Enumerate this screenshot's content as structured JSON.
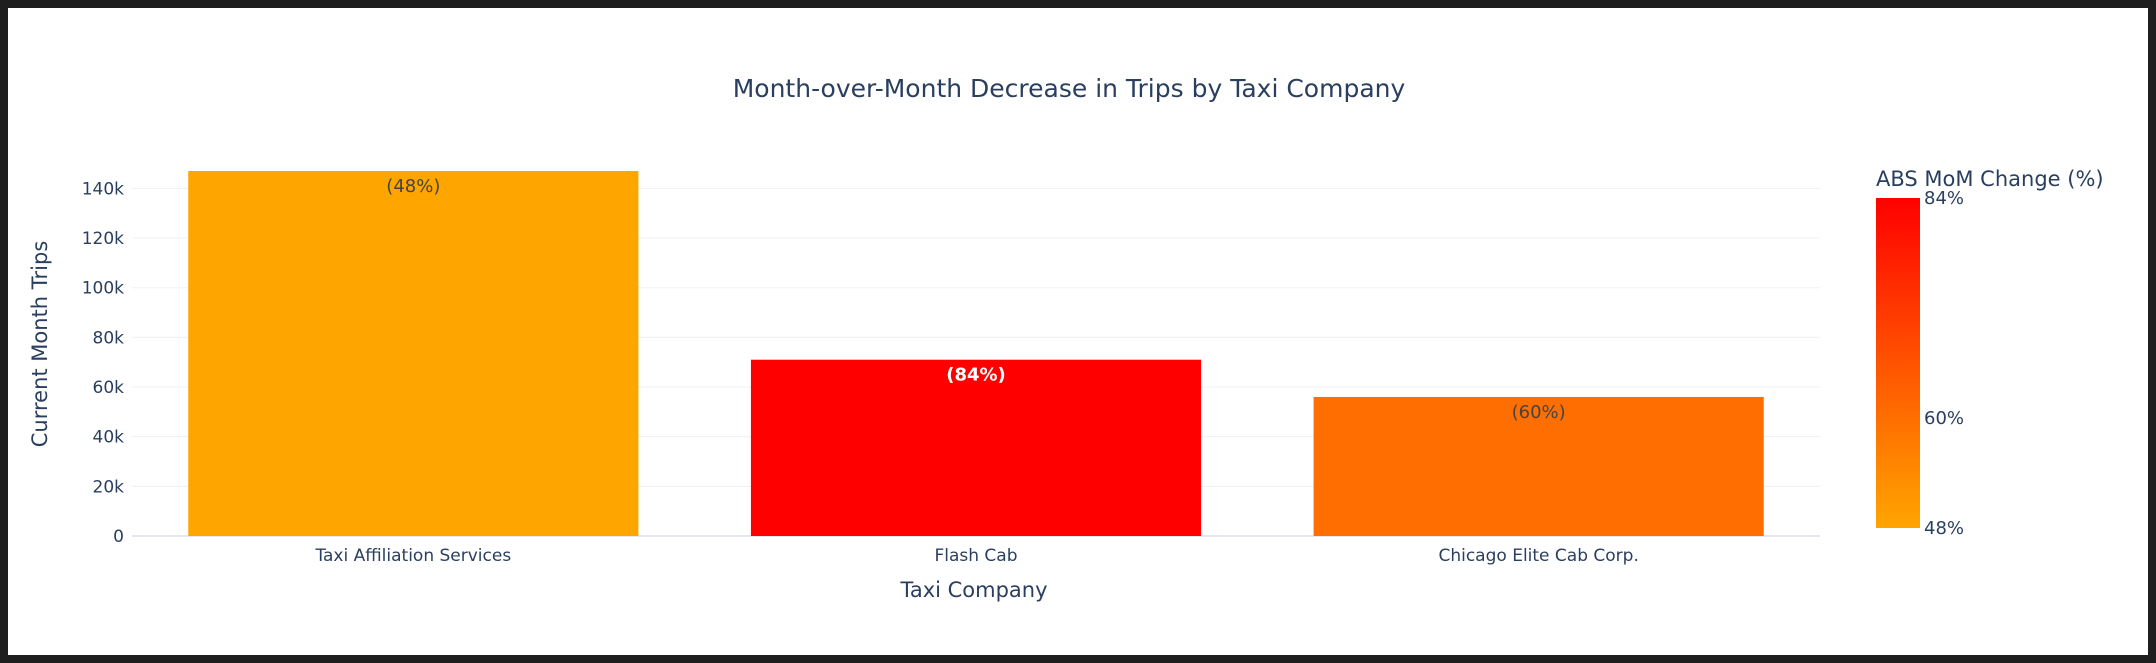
{
  "chart_data": {
    "type": "bar",
    "title": "Month-over-Month Decrease in Trips by Taxi Company",
    "xlabel": "Taxi Company",
    "ylabel": "Current Month Trips",
    "categories": [
      "Taxi Affiliation Services",
      "Flash Cab",
      "Chicago Elite Cab Corp."
    ],
    "values": [
      147000,
      71000,
      56000
    ],
    "data_labels": [
      "(48%)",
      "(84%)",
      "(60%)"
    ],
    "mom_change_pct": [
      48,
      84,
      60
    ],
    "label_colors": [
      "#444444",
      "#ffffff",
      "#444444"
    ],
    "ylim": [
      0,
      147000
    ],
    "yticks": [
      0,
      20000,
      40000,
      60000,
      80000,
      100000,
      120000,
      140000
    ],
    "ytick_labels": [
      "0",
      "20k",
      "40k",
      "60k",
      "80k",
      "100k",
      "120k",
      "140k"
    ],
    "grid": true,
    "colorbar": {
      "title": "ABS MoM Change (%)",
      "min": 48,
      "max": 84,
      "ticks": [
        48,
        60,
        84
      ],
      "tick_labels": [
        "48%",
        "60%",
        "84%"
      ],
      "color_low": "#ffa500",
      "color_high": "#ff0000"
    }
  }
}
